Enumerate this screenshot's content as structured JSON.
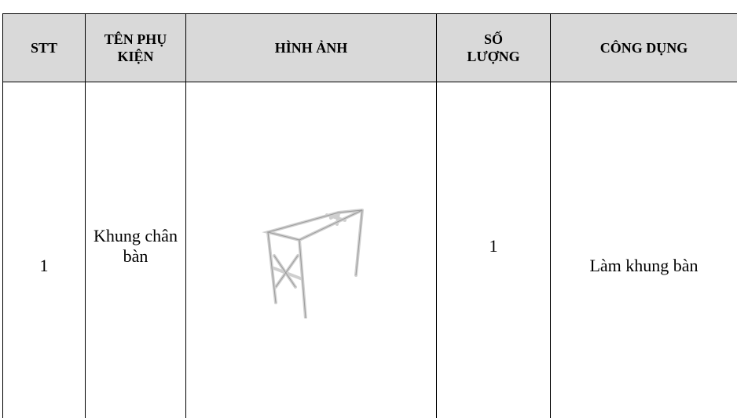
{
  "table": {
    "header": [
      "STT",
      "TÊN PHỤ KIỆN",
      "HÌNH ẢNH",
      "SỐ LƯỢNG",
      "CÔNG DỤNG"
    ],
    "rows": [
      [
        "1",
        "Khung chân bàn",
        "",
        "1",
        "Làm khung bàn"
      ]
    ]
  }
}
